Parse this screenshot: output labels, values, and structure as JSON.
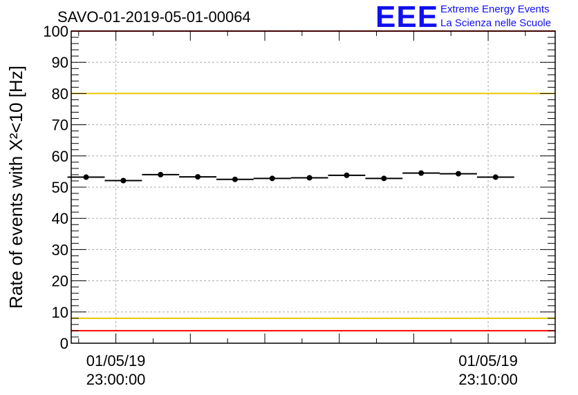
{
  "title": "SAVO-01-2019-05-01-00064",
  "logo": {
    "mark": "EEE",
    "line1": "Extreme Energy Events",
    "line2": "La Scienza nelle Scuole",
    "color": "#1010ee"
  },
  "chart_data": {
    "type": "scatter",
    "title": "SAVO-01-2019-05-01-00064",
    "xlabel": "",
    "ylabel": "Rate of events with X²<10 [Hz]",
    "ylim": [
      0,
      100
    ],
    "y_ticks": [
      0,
      10,
      20,
      30,
      40,
      50,
      60,
      70,
      80,
      90,
      100
    ],
    "x_range_min": [
      -1.2,
      11.8
    ],
    "x_ticks": [
      {
        "min": 0,
        "date": "01/05/19",
        "time": "23:00:00"
      },
      {
        "min": 10,
        "date": "01/05/19",
        "time": "23:10:00"
      }
    ],
    "grid": true,
    "series": [
      {
        "x_min": [
          -0.8,
          0.2,
          1.2,
          2.2,
          3.2,
          4.2,
          5.2,
          6.2,
          7.2,
          8.2,
          9.2,
          10.2
        ],
        "x_halfwidth_min": 0.5,
        "values": [
          53.2,
          52.1,
          54.0,
          53.3,
          52.5,
          52.8,
          53.0,
          53.8,
          52.8,
          54.5,
          54.3,
          53.2
        ],
        "y_err": [
          0.6,
          0.6,
          0.6,
          0.6,
          0.6,
          0.6,
          0.6,
          0.6,
          0.6,
          0.6,
          0.6,
          0.6
        ],
        "color": "#000000"
      }
    ],
    "reference_lines": [
      {
        "y": 100,
        "color": "#ff0000"
      },
      {
        "y": 80,
        "color": "#e8c800"
      },
      {
        "y": 8,
        "color": "#e8c800"
      },
      {
        "y": 4,
        "color": "#ff0000"
      }
    ]
  }
}
